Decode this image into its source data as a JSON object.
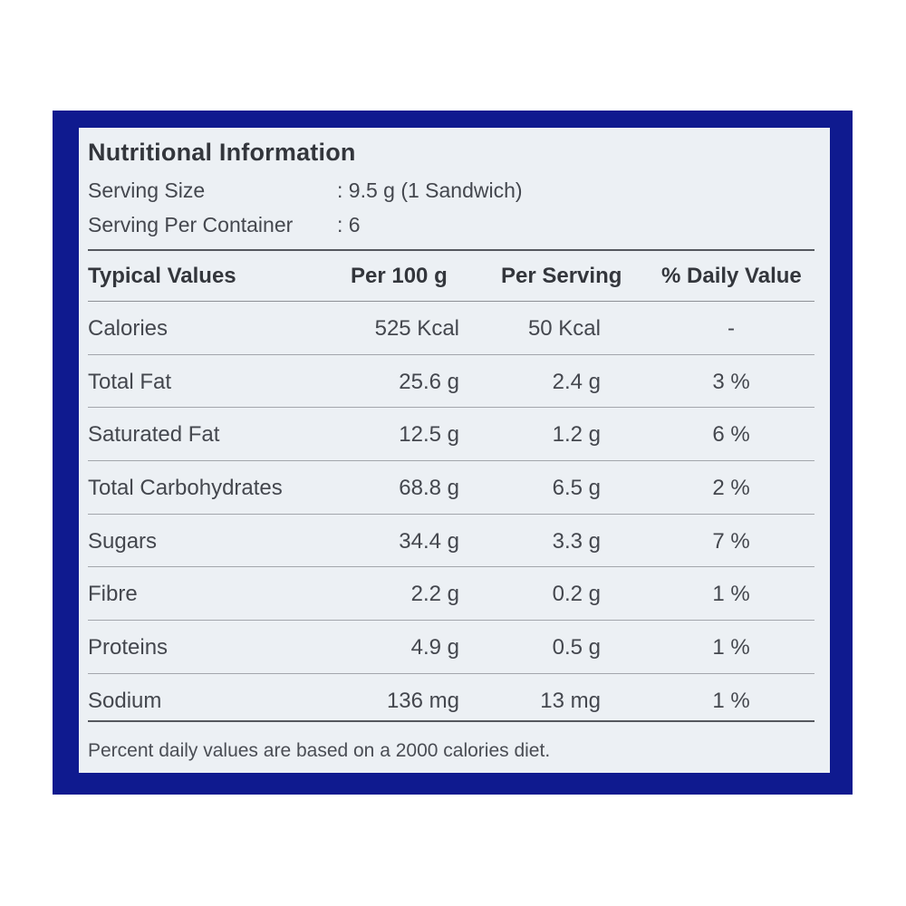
{
  "title": "Nutritional Information",
  "serving_size": {
    "label": "Serving Size",
    "value": ": 9.5 g (1 Sandwich)"
  },
  "servings_per_container": {
    "label": "Serving Per Container",
    "value": ": 6"
  },
  "table": {
    "headers": [
      "Typical Values",
      "Per 100 g",
      "Per Serving",
      "% Daily Value"
    ],
    "rows": [
      {
        "name": "Calories",
        "per100": "525 Kcal",
        "serving": "50 Kcal",
        "daily": "-"
      },
      {
        "name": "Total Fat",
        "per100": "25.6 g",
        "serving": "2.4 g",
        "daily": "3 %"
      },
      {
        "name": "Saturated Fat",
        "per100": "12.5 g",
        "serving": "1.2 g",
        "daily": "6 %"
      },
      {
        "name": "Total Carbohydrates",
        "per100": "68.8 g",
        "serving": "6.5 g",
        "daily": "2 %"
      },
      {
        "name": "Sugars",
        "per100": "34.4 g",
        "serving": "3.3 g",
        "daily": "7 %"
      },
      {
        "name": "Fibre",
        "per100": "2.2 g",
        "serving": "0.2 g",
        "daily": "1 %"
      },
      {
        "name": "Proteins",
        "per100": "4.9 g",
        "serving": "0.5 g",
        "daily": "1 %"
      },
      {
        "name": "Sodium",
        "per100": "136 mg",
        "serving": "13 mg",
        "daily": "1 %"
      }
    ]
  },
  "footnote": "Percent daily values are based on a 2000 calories diet.",
  "colors": {
    "frame": "#0f1a8f",
    "panel": "#ecf0f4",
    "text": "#3a3d44"
  }
}
